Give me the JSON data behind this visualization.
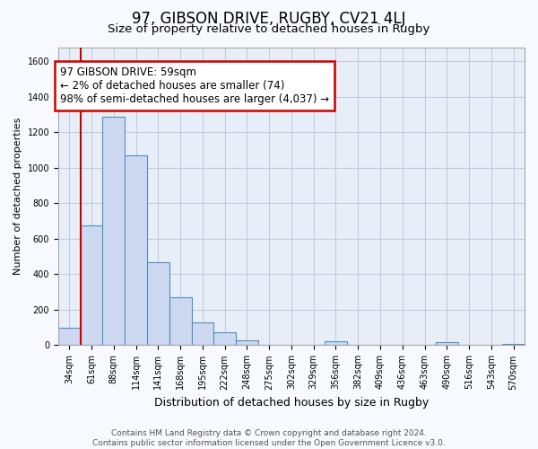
{
  "title": "97, GIBSON DRIVE, RUGBY, CV21 4LJ",
  "subtitle": "Size of property relative to detached houses in Rugby",
  "xlabel": "Distribution of detached houses by size in Rugby",
  "ylabel": "Number of detached properties",
  "footer_lines": [
    "Contains HM Land Registry data © Crown copyright and database right 2024.",
    "Contains public sector information licensed under the Open Government Licence v3.0."
  ],
  "bar_labels": [
    "34sqm",
    "61sqm",
    "88sqm",
    "114sqm",
    "141sqm",
    "168sqm",
    "195sqm",
    "222sqm",
    "248sqm",
    "275sqm",
    "302sqm",
    "329sqm",
    "356sqm",
    "382sqm",
    "409sqm",
    "436sqm",
    "463sqm",
    "490sqm",
    "516sqm",
    "543sqm",
    "570sqm"
  ],
  "bar_heights": [
    100,
    675,
    1290,
    1070,
    470,
    270,
    130,
    75,
    30,
    0,
    0,
    0,
    20,
    0,
    0,
    0,
    0,
    15,
    0,
    0,
    5
  ],
  "bar_color": "#ccd9f0",
  "bar_edge_color": "#4f8fc0",
  "bar_width": 1.0,
  "annotation_line1": "97 GIBSON DRIVE: 59sqm",
  "annotation_line2": "← 2% of detached houses are smaller (74)",
  "annotation_line3": "98% of semi-detached houses are larger (4,037) →",
  "red_line_x": 1.0,
  "ylim": [
    0,
    1680
  ],
  "yticks": [
    0,
    200,
    400,
    600,
    800,
    1000,
    1200,
    1400,
    1600
  ],
  "plot_background": "#e8eef8",
  "grid_color": "#c0cce0",
  "title_fontsize": 12,
  "subtitle_fontsize": 9.5,
  "annotation_fontsize": 8.5,
  "axis_label_fontsize": 8,
  "xlabel_fontsize": 9,
  "tick_fontsize": 7,
  "footer_fontsize": 6.5,
  "fig_facecolor": "#f8f8ff"
}
